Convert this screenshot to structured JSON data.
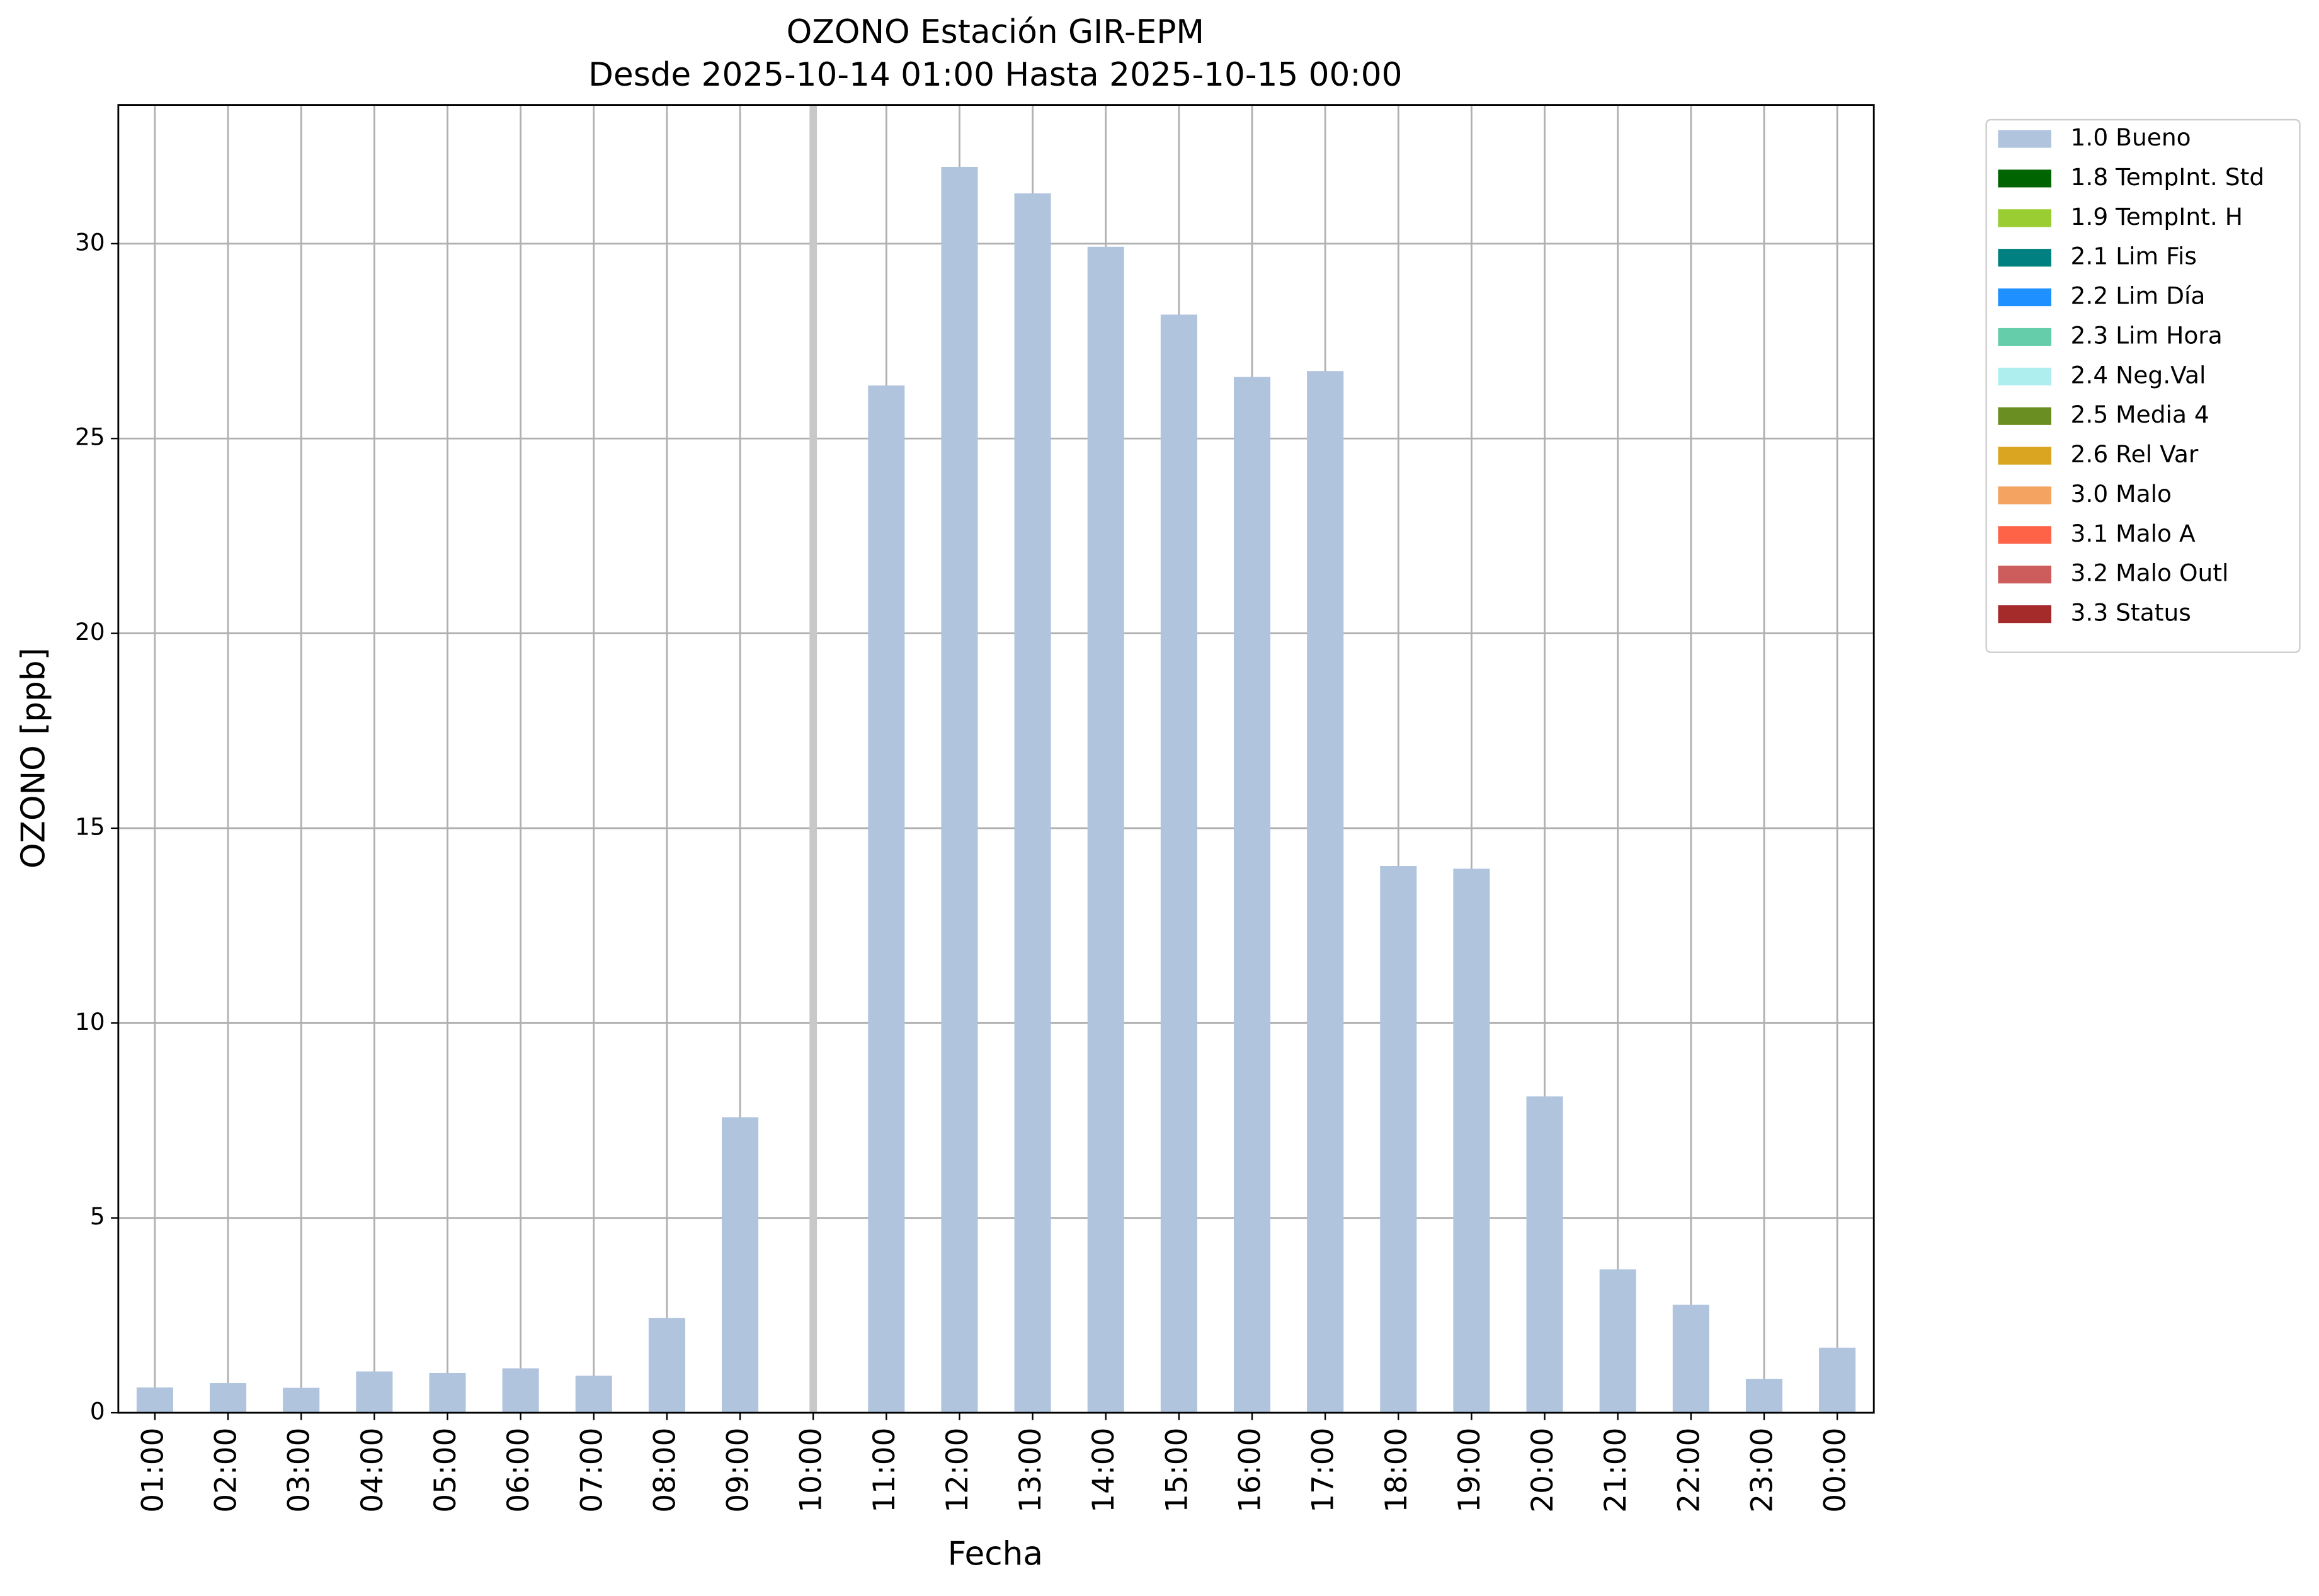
{
  "chart_data": {
    "type": "bar",
    "title": "OZONO Estación GIR-EPM",
    "subtitle": "Desde 2025-10-14 01:00 Hasta 2025-10-15 00:00",
    "x_label": "Fecha",
    "y_label": "OZONO [ppb]",
    "categories": [
      "01:00",
      "02:00",
      "03:00",
      "04:00",
      "05:00",
      "06:00",
      "07:00",
      "08:00",
      "09:00",
      "10:00",
      "11:00",
      "12:00",
      "13:00",
      "14:00",
      "15:00",
      "16:00",
      "17:00",
      "18:00",
      "19:00",
      "20:00",
      "21:00",
      "22:00",
      "23:00",
      "00:00"
    ],
    "series": [
      {
        "name": "1.0 Bueno",
        "color": "#b0c4de",
        "values": [
          0.65,
          0.76,
          0.64,
          1.06,
          1.02,
          1.14,
          0.95,
          2.43,
          7.58,
          null,
          26.36,
          31.97,
          31.29,
          29.92,
          28.18,
          26.58,
          26.73,
          14.03,
          13.96,
          8.12,
          3.68,
          2.77,
          0.87,
          1.67
        ]
      },
      {
        "name": "1.8 TempInt. Std",
        "color": "#006400"
      },
      {
        "name": "1.9 TempInt. H",
        "color": "#9acd32"
      },
      {
        "name": "2.1 Lim Fis",
        "color": "#008080"
      },
      {
        "name": "2.2 Lim Día",
        "color": "#1e90ff"
      },
      {
        "name": "2.3 Lim Hora",
        "color": "#66cdaa"
      },
      {
        "name": "2.4 Neg.Val",
        "color": "#afeeee"
      },
      {
        "name": "2.5 Media 4",
        "color": "#6b8e23"
      },
      {
        "name": "2.6 Rel Var",
        "color": "#daa520"
      },
      {
        "name": "3.0 Malo",
        "color": "#f4a460"
      },
      {
        "name": "3.1 Malo A",
        "color": "#ff6347"
      },
      {
        "name": "3.2 Malo Outl",
        "color": "#cd5c5c"
      },
      {
        "name": "3.3 Status",
        "color": "#a52a2a"
      }
    ],
    "ylim": [
      0,
      33.56
    ],
    "yticks": [
      0,
      5,
      10,
      15,
      20,
      25,
      30
    ],
    "grid": true,
    "legend": "outside-upper-right"
  }
}
